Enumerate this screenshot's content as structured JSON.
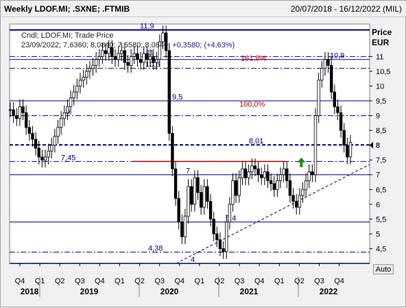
{
  "header": {
    "title": "Weekly LDOF.MI; .SXNE; .FTMIB",
    "date_range": "20/07/2018 - 16/12/2022 (MIL)"
  },
  "legend": {
    "line1": "Cndl; LDOF.MI; Trade Price",
    "line2_prefix": "23/09/2022; 7,6360; 8,0840; 7,5580; 8,0840;",
    "line2_change": "+0,3580; (+4,63%)"
  },
  "axis": {
    "price_label": "Price",
    "currency_label": "EUR",
    "auto_button": "Auto"
  },
  "colors": {
    "candle": "#000000",
    "level": "#000080",
    "fib": "#c00000",
    "arrow": "#1a8c1a",
    "trend": "#000080",
    "plot_bg": "#ffffff"
  },
  "chart_data": {
    "type": "candlestick",
    "ylim": [
      4,
      12.1
    ],
    "y_ticks": [
      "4,5",
      "5",
      "5,5",
      "6",
      "6,5",
      "7",
      "7,5",
      "8",
      "8,5",
      "9",
      "9,5",
      "10",
      "10,5",
      "11"
    ],
    "x_quarters": [
      "Q4",
      "Q1",
      "Q2",
      "Q3",
      "Q4",
      "Q1",
      "Q2",
      "Q3",
      "Q4",
      "Q1",
      "Q2",
      "Q3",
      "Q4",
      "Q1",
      "Q2",
      "Q3",
      "Q4"
    ],
    "x_years": [
      "2018",
      "2019",
      "2020",
      "2021",
      "2022"
    ],
    "last_price_tag": "8",
    "levels": [
      {
        "value": 11.9,
        "label": "11,9",
        "style": "solid"
      },
      {
        "value": 11,
        "label": "11",
        "style": "dashdot"
      },
      {
        "value": 10.9,
        "label": "10,9",
        "style": "solid"
      },
      {
        "value": 10.6,
        "label": "10,6",
        "style": "dashdot"
      },
      {
        "value": 9.5,
        "label": "9,5",
        "style": "solid"
      },
      {
        "value": 9,
        "label": "9",
        "style": "dashdot"
      },
      {
        "value": 8.01,
        "label": "8,01",
        "style": "dashed"
      },
      {
        "value": 7.45,
        "label": "7,45",
        "style": "dashdot"
      },
      {
        "value": 7,
        "label": "7",
        "style": "solid"
      },
      {
        "value": 5.4,
        "label": "5,4",
        "style": "solid"
      },
      {
        "value": 4.38,
        "label": "4,38",
        "style": "dashdot"
      },
      {
        "value": 4,
        "label": "4",
        "style": "solid"
      }
    ],
    "fib_labels": [
      {
        "value": 10.95,
        "label": "161,8%"
      },
      {
        "value": 9.4,
        "label": "100,0%"
      }
    ],
    "resistance_line": {
      "value": 7.45,
      "from": "2020-Q2",
      "to": "2022-Q1"
    },
    "trendline": {
      "from": [
        "2020-Q4",
        4.0
      ],
      "to": [
        "2022-Q4",
        7.35
      ]
    },
    "prices": [
      9.2,
      9.0,
      8.9,
      9.3,
      9.1,
      8.6,
      8.4,
      8.2,
      7.9,
      7.6,
      7.5,
      7.6,
      7.8,
      8.0,
      8.3,
      8.6,
      8.9,
      9.1,
      9.3,
      9.6,
      9.8,
      10.0,
      10.2,
      10.3,
      10.5,
      10.6,
      10.7,
      10.9,
      11.0,
      11.2,
      11.1,
      11.3,
      11.0,
      10.9,
      11.1,
      11.2,
      10.8,
      10.7,
      11.0,
      11.1,
      10.9,
      10.8,
      11.1,
      10.9,
      11.0,
      10.8,
      10.9,
      11.5,
      11.8,
      11.2,
      8.4,
      7.2,
      6.2,
      5.4,
      4.9,
      5.6,
      6.6,
      6.0,
      6.9,
      6.4,
      5.9,
      6.6,
      6.1,
      5.5,
      5.0,
      4.8,
      4.5,
      4.4,
      5.4,
      6.0,
      6.8,
      6.3,
      6.9,
      7.2,
      6.9,
      7.1,
      7.3,
      7.2,
      7.0,
      6.9,
      7.1,
      6.8,
      6.7,
      6.5,
      6.8,
      7.0,
      7.2,
      6.8,
      6.3,
      6.1,
      5.9,
      6.3,
      6.5,
      6.8,
      7.1,
      7.0,
      9.0,
      10.2,
      10.6,
      10.9,
      10.7,
      9.8,
      9.3,
      9.1,
      8.5,
      8.0,
      7.6,
      8.1
    ],
    "up_arrow": {
      "x_quarter": "2022-Q2",
      "value": 7.35
    }
  }
}
